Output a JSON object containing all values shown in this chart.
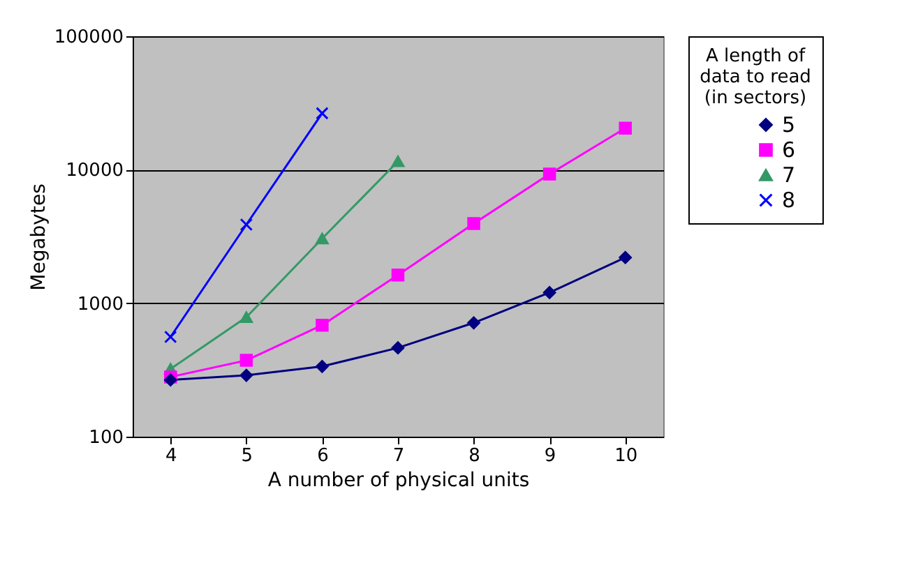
{
  "chart_data": {
    "type": "line",
    "xlabel": "A number of physical units",
    "ylabel": "Megabytes",
    "legend_title": "A length of\ndata to read\n(in sectors)",
    "categories": [
      "4",
      "5",
      "6",
      "7",
      "8",
      "9",
      "10"
    ],
    "log": "y",
    "ylim": [
      100,
      100000
    ],
    "yticks": [
      100,
      1000,
      10000,
      100000
    ],
    "grid": "y",
    "legend": "right",
    "line_style": "solid",
    "series": [
      {
        "name": "5",
        "color": "#000080",
        "marker": "diamond",
        "values": [
          266,
          288,
          336,
          463,
          713,
          1202,
          2200
        ]
      },
      {
        "name": "6",
        "color": "#ff00ff",
        "marker": "square",
        "values": [
          280,
          373,
          684,
          1625,
          3950,
          9290,
          20500
        ]
      },
      {
        "name": "7",
        "color": "#339966",
        "marker": "triangle",
        "values": [
          322,
          785,
          3050,
          11560,
          null,
          null,
          null
        ]
      },
      {
        "name": "8",
        "color": "#0000ff",
        "marker": "cross",
        "values": [
          559,
          3880,
          26500,
          null,
          null,
          null,
          null
        ]
      }
    ]
  }
}
